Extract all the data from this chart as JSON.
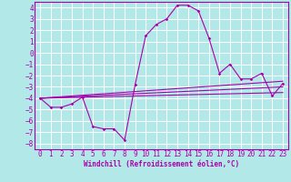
{
  "xlabel": "Windchill (Refroidissement éolien,°C)",
  "background_color": "#b2e8e8",
  "grid_color": "#ffffff",
  "line_color": "#aa00aa",
  "xlim": [
    -0.5,
    23.5
  ],
  "ylim": [
    -8.5,
    4.5
  ],
  "xticks": [
    0,
    1,
    2,
    3,
    4,
    5,
    6,
    7,
    8,
    9,
    10,
    11,
    12,
    13,
    14,
    15,
    16,
    17,
    18,
    19,
    20,
    21,
    22,
    23
  ],
  "yticks": [
    -8,
    -7,
    -6,
    -5,
    -4,
    -3,
    -2,
    -1,
    0,
    1,
    2,
    3,
    4
  ],
  "series": [
    [
      0,
      -4.0
    ],
    [
      1,
      -4.8
    ],
    [
      2,
      -4.8
    ],
    [
      3,
      -4.5
    ],
    [
      4,
      -3.9
    ],
    [
      5,
      -6.5
    ],
    [
      6,
      -6.7
    ],
    [
      7,
      -6.7
    ],
    [
      8,
      -7.7
    ],
    [
      9,
      -2.8
    ],
    [
      10,
      1.5
    ],
    [
      11,
      2.5
    ],
    [
      12,
      3.0
    ],
    [
      13,
      4.2
    ],
    [
      14,
      4.2
    ],
    [
      15,
      3.7
    ],
    [
      16,
      1.3
    ],
    [
      17,
      -1.8
    ],
    [
      18,
      -1.0
    ],
    [
      19,
      -2.3
    ],
    [
      20,
      -2.3
    ],
    [
      21,
      -1.8
    ],
    [
      22,
      -3.8
    ],
    [
      23,
      -2.7
    ]
  ],
  "linear_lines": [
    {
      "x": [
        0,
        23
      ],
      "y": [
        -4.0,
        -2.5
      ]
    },
    {
      "x": [
        0,
        23
      ],
      "y": [
        -4.0,
        -3.0
      ]
    },
    {
      "x": [
        0,
        23
      ],
      "y": [
        -4.0,
        -3.5
      ]
    }
  ],
  "tick_fontsize": 5.5,
  "xlabel_fontsize": 5.5
}
